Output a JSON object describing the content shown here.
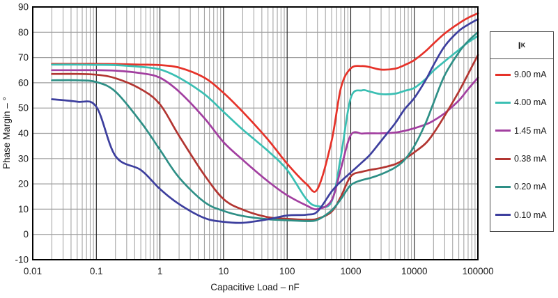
{
  "chart_data": {
    "type": "line",
    "title": "",
    "xlabel": "Capacitive Load – nF",
    "ylabel": "Phase Margin – °",
    "x_scale": "log",
    "xlim": [
      0.01,
      100000
    ],
    "ylim": [
      -10,
      90
    ],
    "x_ticks": [
      0.01,
      0.1,
      1,
      10,
      100,
      1000,
      10000,
      100000
    ],
    "x_tick_labels": [
      "0.01",
      "0.1",
      "1",
      "10",
      "100",
      "1000",
      "10000",
      "100000"
    ],
    "y_ticks": [
      -10,
      0,
      10,
      20,
      30,
      40,
      50,
      60,
      70,
      80,
      90
    ],
    "grid": "gray minor log gridlines, black decade lines, gray 10-degree lines",
    "legend": {
      "title": "I",
      "title_sub": "K",
      "position": "right"
    },
    "colors": {
      "frame": "#000000",
      "minor_grid": "#9d9d9d",
      "major_grid": "#1a1a1a",
      "text": "#1b1b1b"
    },
    "x": [
      0.02,
      0.05,
      0.1,
      0.2,
      0.5,
      1,
      2,
      5,
      10,
      20,
      50,
      100,
      200,
      300,
      500,
      700,
      1000,
      1500,
      2000,
      3000,
      5000,
      7000,
      10000,
      15000,
      20000,
      30000,
      50000,
      70000,
      100000
    ],
    "series": [
      {
        "name": "9.00 mA",
        "color": "#e63229",
        "values": [
          67.5,
          67.5,
          67.5,
          67.4,
          67.2,
          67.0,
          66.0,
          62.0,
          56.0,
          48.5,
          37.5,
          28.0,
          20.0,
          18.0,
          37.0,
          58.0,
          65.7,
          66.6,
          66.2,
          65.2,
          65.6,
          67.0,
          69.0,
          72.5,
          75.5,
          79.5,
          83.5,
          85.7,
          87.5
        ]
      },
      {
        "name": "4.00 mA",
        "color": "#3abfb3",
        "values": [
          67.2,
          67.2,
          67.1,
          67.0,
          66.3,
          65.3,
          62.0,
          55.5,
          48.5,
          41.5,
          33.0,
          25.5,
          14.0,
          11.2,
          13.0,
          31.0,
          54.0,
          57.0,
          56.5,
          55.5,
          55.7,
          56.8,
          58.0,
          61.5,
          64.8,
          68.5,
          73.0,
          76.0,
          78.5
        ]
      },
      {
        "name": "1.45 mA",
        "color": "#a23fa0",
        "values": [
          65.0,
          65.0,
          65.0,
          64.8,
          63.8,
          62.0,
          56.5,
          46.0,
          36.5,
          29.5,
          21.0,
          15.5,
          11.5,
          10.0,
          13.5,
          26.0,
          39.3,
          39.9,
          40.0,
          40.0,
          40.3,
          41.0,
          42.0,
          43.5,
          45.0,
          48.0,
          53.0,
          57.5,
          62.0
        ]
      },
      {
        "name": "0.38 mA",
        "color": "#b23531",
        "values": [
          63.5,
          63.5,
          63.2,
          61.8,
          57.5,
          51.5,
          39.0,
          23.5,
          14.0,
          9.8,
          6.8,
          6.2,
          5.8,
          6.2,
          9.0,
          15.0,
          23.0,
          24.8,
          25.5,
          26.3,
          27.8,
          29.8,
          32.5,
          36.0,
          40.0,
          47.0,
          56.5,
          63.5,
          71.0
        ]
      },
      {
        "name": "0.20 mA",
        "color": "#2e8f86",
        "values": [
          61.0,
          61.0,
          60.3,
          56.5,
          44.5,
          33.5,
          22.5,
          12.8,
          9.3,
          7.3,
          6.0,
          5.6,
          5.3,
          5.8,
          9.5,
          14.0,
          19.5,
          21.5,
          22.3,
          23.8,
          26.5,
          29.5,
          35.0,
          44.0,
          52.0,
          63.0,
          72.0,
          76.5,
          80.0
        ]
      },
      {
        "name": "0.10 mA",
        "color": "#3d3f9e",
        "values": [
          53.5,
          52.5,
          50.5,
          31.0,
          25.5,
          18.0,
          12.0,
          6.5,
          5.0,
          4.6,
          6.0,
          7.5,
          7.8,
          9.1,
          17.0,
          21.0,
          24.5,
          28.5,
          31.5,
          37.0,
          44.0,
          49.5,
          54.0,
          61.0,
          67.0,
          74.5,
          80.5,
          83.0,
          85.2
        ]
      }
    ]
  }
}
